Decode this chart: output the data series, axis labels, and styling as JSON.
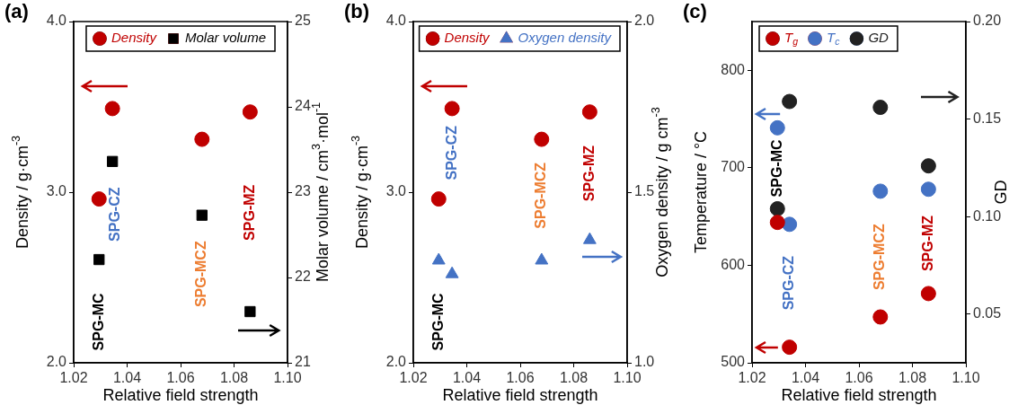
{
  "chart_data": [
    {
      "type": "scatter",
      "title": "(a)",
      "xlabel": "Relative field strength",
      "ylabel": "Density / g·cm$^{-3}$",
      "y2label": "Molar volume / cm$^{3}$·mol$^{-1}$",
      "x": [
        1.0295,
        1.0345,
        1.068,
        1.086
      ],
      "xlim": [
        1.02,
        1.1
      ],
      "xticks": [
        {
          "value": 1.02,
          "label": "1.02"
        },
        {
          "value": 1.04,
          "label": "1.04"
        },
        {
          "value": 1.06,
          "label": "1.06"
        },
        {
          "value": 1.08,
          "label": "1.08"
        },
        {
          "value": 1.1,
          "label": "1.10"
        }
      ],
      "ylim": [
        2,
        4
      ],
      "yticks": [
        {
          "value": 2,
          "label": "2.0"
        },
        {
          "value": 3,
          "label": "3.0"
        },
        {
          "value": 4,
          "label": "4.0"
        }
      ],
      "y2lim": [
        21,
        25
      ],
      "y2ticks": [
        21,
        22,
        23,
        24,
        25
      ],
      "series": [
        {
          "name": "Density",
          "color": "#c00000",
          "marker": "circle",
          "values": [
            2.96,
            3.49,
            3.31,
            3.47
          ]
        },
        {
          "name": "Molar volume",
          "color": "#000000",
          "marker": "square",
          "axis": "y2",
          "values": [
            22.21,
            23.36,
            22.73,
            21.6
          ]
        }
      ],
      "annotations": [
        "SPG-MC",
        "SPG-CZ",
        "SPG-MCZ",
        "SPG-MZ"
      ],
      "legend": "top",
      "grid": false
    },
    {
      "type": "scatter",
      "title": "(b)",
      "xlabel": "Relative field strength",
      "ylabel": "Density / g·cm$^{-3}$",
      "y2label": "Oxygen density / g cm$^{-3}$",
      "x": [
        1.0295,
        1.0345,
        1.068,
        1.086
      ],
      "xlim": [
        1.02,
        1.1
      ],
      "xticks": [
        {
          "value": 1.02,
          "label": "1.02"
        },
        {
          "value": 1.04,
          "label": "1.04"
        },
        {
          "value": 1.06,
          "label": "1.06"
        },
        {
          "value": 1.08,
          "label": "1.08"
        },
        {
          "value": 1.1,
          "label": "1.10"
        }
      ],
      "ylim": [
        2,
        4
      ],
      "yticks": [
        {
          "value": 2,
          "label": "2.0"
        },
        {
          "value": 3,
          "label": "3.0"
        },
        {
          "value": 4,
          "label": "4.0"
        }
      ],
      "y2lim": [
        1,
        2
      ],
      "y2ticks": [
        {
          "value": 1,
          "label": "1.0"
        },
        {
          "value": 1.5,
          "label": "1.5"
        },
        {
          "value": 2,
          "label": "2.0"
        }
      ],
      "series": [
        {
          "name": "Density",
          "color": "#c00000",
          "marker": "circle",
          "values": [
            2.96,
            3.49,
            3.31,
            3.47
          ]
        },
        {
          "name": "Oxygen density",
          "color": "#4472c4",
          "marker": "triangle",
          "axis": "y2",
          "values": [
            1.3,
            1.26,
            1.3,
            1.36
          ]
        }
      ],
      "annotations": [
        "SPG-MC",
        "SPG-CZ",
        "SPG-MCZ",
        "SPG-MZ"
      ],
      "legend": "top right",
      "grid": false
    },
    {
      "type": "scatter",
      "title": "(c)",
      "xlabel": "Relative field strength",
      "ylabel": "Temperature / °C",
      "y2label": "GD",
      "x": [
        1.0295,
        1.034,
        1.068,
        1.086
      ],
      "xlim": [
        1.02,
        1.1
      ],
      "xticks": [
        {
          "value": 1.02,
          "label": "1.02"
        },
        {
          "value": 1.04,
          "label": "1.04"
        },
        {
          "value": 1.06,
          "label": "1.06"
        },
        {
          "value": 1.08,
          "label": "1.08"
        },
        {
          "value": 1.1,
          "label": "1.10"
        }
      ],
      "ylim": [
        500,
        850
      ],
      "yticks": [
        500,
        600,
        700,
        800
      ],
      "y2lim": [
        0.025,
        0.2
      ],
      "y2ticks": [
        {
          "value": 0.05,
          "label": "0.05"
        },
        {
          "value": 0.1,
          "label": "0.10"
        },
        {
          "value": 0.15,
          "label": "0.15"
        },
        {
          "value": 0.2,
          "label": "0.20"
        }
      ],
      "series": [
        {
          "name": "T$_{g}$",
          "color": "#c00000",
          "marker": "circle",
          "values": [
            644,
            516,
            547,
            571
          ]
        },
        {
          "name": "T$_{c}$",
          "color": "#4472c4",
          "marker": "circle",
          "values": [
            741,
            642,
            676,
            678
          ]
        },
        {
          "name": "GD",
          "color": "#222222",
          "marker": "circle",
          "axis": "y2",
          "values": [
            0.104,
            0.159,
            0.156,
            0.126
          ]
        }
      ],
      "annotations": [
        "SPG-MC",
        "SPG-CZ",
        "SPG-MCZ",
        "SPG-MZ"
      ],
      "legend": "top left",
      "grid": false
    }
  ]
}
